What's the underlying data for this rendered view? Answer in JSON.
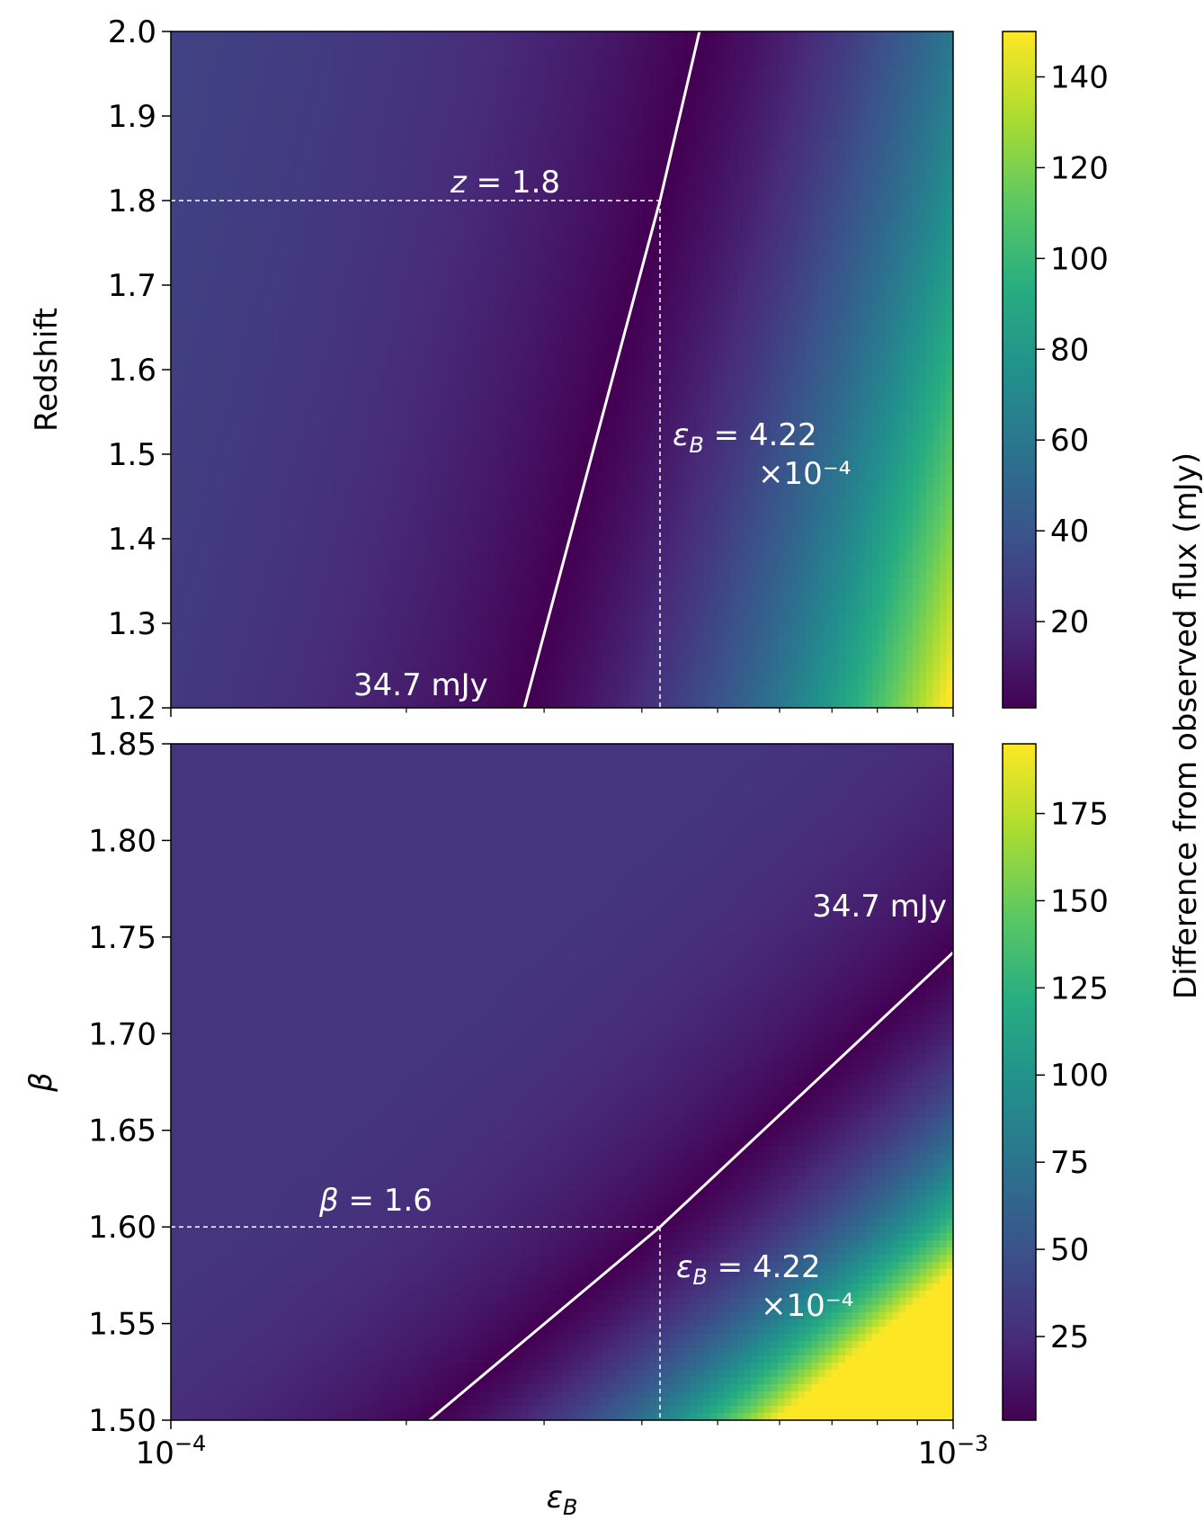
{
  "colors": {
    "colormap": "viridis",
    "contour_line": "#ffffff",
    "guide_line": "#ffffff"
  },
  "chart_data": [
    {
      "type": "heatmap",
      "panel": "top",
      "xscale": "log",
      "xlim": [
        0.0001,
        0.001
      ],
      "ylim": [
        1.2,
        2.0
      ],
      "ylabel": "Redshift",
      "yticks": [
        1.2,
        1.3,
        1.4,
        1.5,
        1.6,
        1.7,
        1.8,
        1.9,
        2.0
      ],
      "ytick_labels": [
        "1.2",
        "1.3",
        "1.4",
        "1.5",
        "1.6",
        "1.7",
        "1.8",
        "1.9",
        "2.0"
      ],
      "colorbar": {
        "range": [
          1,
          150
        ],
        "ticks": [
          20,
          40,
          60,
          80,
          100,
          120,
          140
        ],
        "tick_labels": [
          "20",
          "40",
          "60",
          "80",
          "100",
          "120",
          "140"
        ]
      },
      "contour": {
        "label": "34.7 mJy",
        "points": [
          [
            0.000283,
            1.2
          ],
          [
            0.000422,
            1.8
          ],
          [
            0.000474,
            2.0
          ]
        ]
      },
      "marker": {
        "x": 0.000422,
        "y": 1.8,
        "y_label": "z = 1.8",
        "x_label": "εB = 4.22",
        "x_label_line2": "×10⁻⁴"
      }
    },
    {
      "type": "heatmap",
      "panel": "bottom",
      "xscale": "log",
      "xlim": [
        0.0001,
        0.001
      ],
      "ylim": [
        1.5,
        1.85
      ],
      "ylabel": "β",
      "xlabel": "εB",
      "yticks": [
        1.5,
        1.55,
        1.6,
        1.65,
        1.7,
        1.75,
        1.8,
        1.85
      ],
      "ytick_labels": [
        "1.50",
        "1.55",
        "1.60",
        "1.65",
        "1.70",
        "1.75",
        "1.80",
        "1.85"
      ],
      "xticks": [
        0.0001,
        0.001
      ],
      "xtick_base": "10",
      "xtick_exponents": [
        "−4",
        "−3"
      ],
      "colorbar": {
        "range": [
          1,
          195
        ],
        "ticks": [
          25,
          50,
          75,
          100,
          125,
          150,
          175
        ],
        "tick_labels": [
          "25",
          "50",
          "75",
          "100",
          "125",
          "150",
          "175"
        ]
      },
      "contour": {
        "label": "34.7 mJy",
        "points": [
          [
            0.000214,
            1.5
          ],
          [
            0.000422,
            1.6
          ],
          [
            0.001,
            1.742
          ]
        ]
      },
      "marker": {
        "x": 0.000422,
        "y": 1.6,
        "y_label": "β = 1.6",
        "x_label": "εB = 4.22",
        "x_label_line2": "×10⁻⁴"
      }
    }
  ],
  "colorbar_label": "Difference from observed flux (mJy)"
}
